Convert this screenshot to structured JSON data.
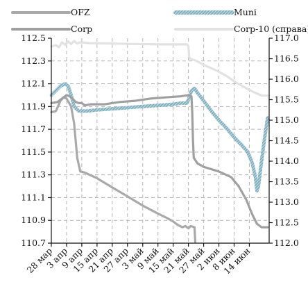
{
  "chart_data": {
    "type": "line",
    "legend_position": "top",
    "grid": true,
    "x_categories": [
      "28 мар",
      "3 апр",
      "9 апр",
      "15 апр",
      "21 апр",
      "27 апр",
      "3 май",
      "9 май",
      "15 май",
      "21 май",
      "27 май",
      "2 июн",
      "8 июн",
      "14 июн"
    ],
    "y_left": {
      "min": 110.7,
      "max": 112.5,
      "ticks": [
        "112.5",
        "112.3",
        "112.1",
        "111.9",
        "111.7",
        "111.5",
        "111.3",
        "111.1",
        "110.9",
        "110.7"
      ]
    },
    "y_right": {
      "min": 112.0,
      "max": 117.0,
      "ticks": [
        "117.0",
        "116.5",
        "116.0",
        "115.5",
        "115.0",
        "114.5",
        "114.0",
        "113.5",
        "113.0",
        "112.5",
        "112.0"
      ]
    },
    "series": [
      {
        "name": "OFZ",
        "axis": "left",
        "color": "#a9a9a9",
        "style": "solid",
        "points": [
          [
            0,
            111.85
          ],
          [
            0.3,
            111.86
          ],
          [
            0.6,
            111.95
          ],
          [
            0.8,
            111.98
          ],
          [
            1.0,
            111.97
          ],
          [
            1.3,
            111.9
          ],
          [
            1.5,
            111.75
          ],
          [
            1.7,
            111.45
          ],
          [
            1.9,
            111.33
          ],
          [
            2.2,
            111.32
          ],
          [
            3.0,
            111.27
          ],
          [
            4.0,
            111.19
          ],
          [
            5.0,
            111.11
          ],
          [
            6.0,
            111.03
          ],
          [
            7.0,
            110.96
          ],
          [
            7.6,
            110.92
          ],
          [
            8.0,
            110.89
          ],
          [
            8.3,
            110.86
          ],
          [
            8.6,
            110.84
          ],
          [
            8.8,
            110.85
          ],
          [
            9.0,
            110.83
          ],
          [
            9.15,
            110.85
          ],
          [
            9.4,
            110.84
          ],
          [
            9.45,
            110.71
          ]
        ]
      },
      {
        "name": "Muni",
        "axis": "left",
        "color": "#8dbccb",
        "style": "hatched",
        "points": [
          [
            0,
            112.0
          ],
          [
            0.3,
            112.04
          ],
          [
            0.6,
            112.08
          ],
          [
            0.9,
            112.1
          ],
          [
            1.1,
            112.08
          ],
          [
            1.3,
            112.0
          ],
          [
            1.5,
            111.9
          ],
          [
            1.8,
            111.86
          ],
          [
            2.3,
            111.86
          ],
          [
            3.0,
            111.87
          ],
          [
            4.0,
            111.88
          ],
          [
            5.0,
            111.89
          ],
          [
            6.0,
            111.9
          ],
          [
            7.0,
            111.91
          ],
          [
            8.0,
            111.92
          ],
          [
            8.5,
            111.93
          ],
          [
            8.9,
            111.93
          ],
          [
            9.0,
            111.96
          ],
          [
            9.2,
            112.04
          ],
          [
            9.4,
            112.06
          ],
          [
            9.6,
            112.02
          ],
          [
            10.0,
            111.95
          ],
          [
            10.5,
            111.86
          ],
          [
            11.0,
            111.78
          ],
          [
            11.5,
            111.71
          ],
          [
            12.0,
            111.63
          ],
          [
            12.5,
            111.56
          ],
          [
            12.9,
            111.5
          ],
          [
            13.2,
            111.4
          ],
          [
            13.4,
            111.28
          ],
          [
            13.5,
            111.16
          ],
          [
            13.6,
            111.2
          ],
          [
            13.8,
            111.42
          ],
          [
            14.0,
            111.62
          ],
          [
            14.2,
            111.8
          ]
        ]
      },
      {
        "name": "Corp",
        "axis": "left",
        "color": "#a0a0a0",
        "style": "solid",
        "points": [
          [
            0,
            111.93
          ],
          [
            0.4,
            111.94
          ],
          [
            0.8,
            111.98
          ],
          [
            1.0,
            112.0
          ],
          [
            1.2,
            111.99
          ],
          [
            1.4,
            111.97
          ],
          [
            1.6,
            111.94
          ],
          [
            1.8,
            111.93
          ],
          [
            2.0,
            111.93
          ],
          [
            2.2,
            111.91
          ],
          [
            2.6,
            111.92
          ],
          [
            3.5,
            111.92
          ],
          [
            4.5,
            111.94
          ],
          [
            5.5,
            111.95
          ],
          [
            6.5,
            111.97
          ],
          [
            7.5,
            111.98
          ],
          [
            8.5,
            111.99
          ],
          [
            9.0,
            112.0
          ],
          [
            9.2,
            111.99
          ],
          [
            9.25,
            111.85
          ],
          [
            9.3,
            111.6
          ],
          [
            9.35,
            111.45
          ],
          [
            9.6,
            111.4
          ],
          [
            10.0,
            111.37
          ],
          [
            11.0,
            111.33
          ],
          [
            11.8,
            111.28
          ],
          [
            12.3,
            111.2
          ],
          [
            12.8,
            111.08
          ],
          [
            13.2,
            110.95
          ],
          [
            13.5,
            110.87
          ],
          [
            13.8,
            110.84
          ],
          [
            14.2,
            110.84
          ]
        ]
      },
      {
        "name": "Corp-10 (справа)",
        "axis": "right",
        "color": "#e2e2e2",
        "style": "solid",
        "points": [
          [
            0,
            116.8
          ],
          [
            0.3,
            116.83
          ],
          [
            0.5,
            116.78
          ],
          [
            0.7,
            116.9
          ],
          [
            0.9,
            116.84
          ],
          [
            1.1,
            116.92
          ],
          [
            1.3,
            116.86
          ],
          [
            1.5,
            116.93
          ],
          [
            1.7,
            116.87
          ],
          [
            1.9,
            116.9
          ],
          [
            2.5,
            116.88
          ],
          [
            4.0,
            116.87
          ],
          [
            5.5,
            116.86
          ],
          [
            7.0,
            116.85
          ],
          [
            8.0,
            116.85
          ],
          [
            8.9,
            116.85
          ],
          [
            9.0,
            116.8
          ],
          [
            9.05,
            116.55
          ],
          [
            9.1,
            116.5
          ],
          [
            9.5,
            116.45
          ],
          [
            10.0,
            116.35
          ],
          [
            10.8,
            116.22
          ],
          [
            11.5,
            116.08
          ],
          [
            12.2,
            115.9
          ],
          [
            12.8,
            115.78
          ],
          [
            13.2,
            115.7
          ],
          [
            13.5,
            115.65
          ],
          [
            13.8,
            115.6
          ],
          [
            14.2,
            115.6
          ]
        ]
      }
    ]
  }
}
